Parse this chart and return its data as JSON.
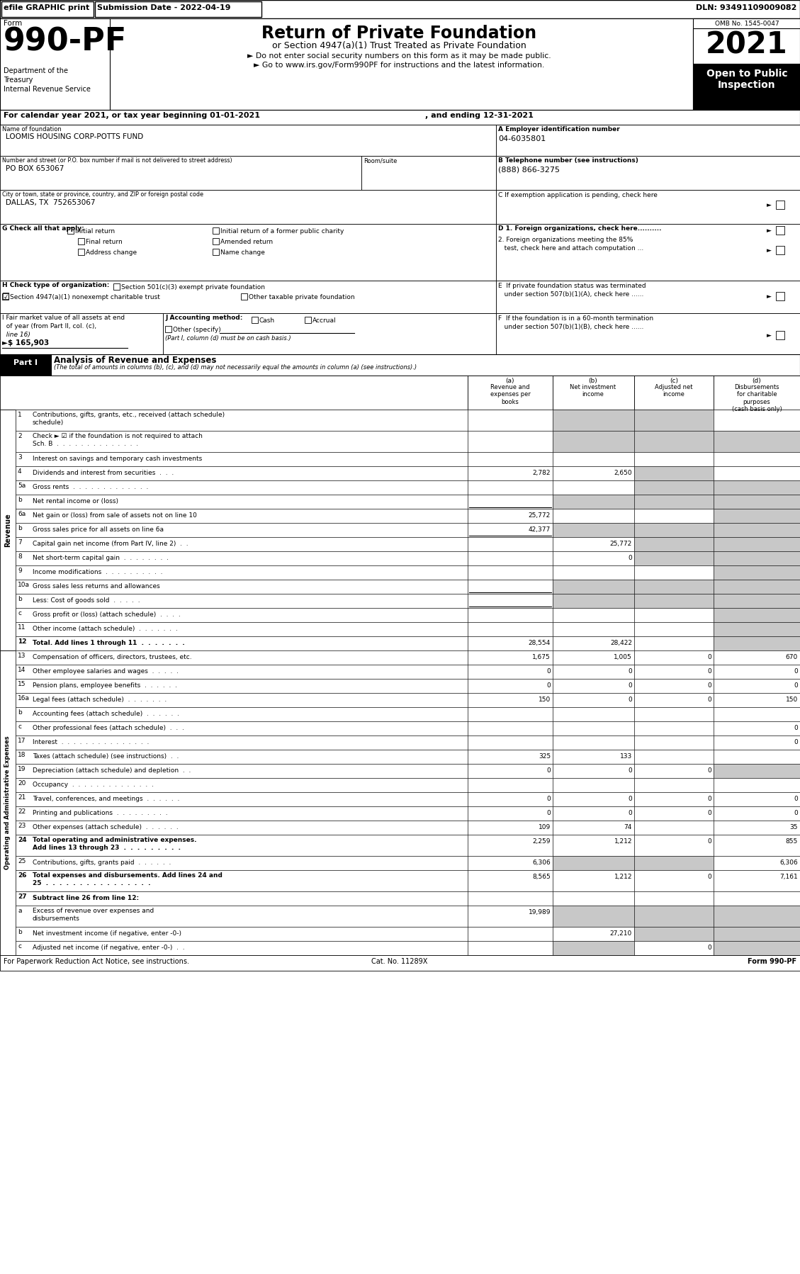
{
  "header_bar_text": "efile GRAPHIC print",
  "submission_date": "Submission Date - 2022-04-19",
  "dln": "DLN: 93491109009082",
  "form_number": "990-PF",
  "form_label": "Form",
  "dept_text": "Department of the\nTreasury\nInternal Revenue Service",
  "main_title": "Return of Private Foundation",
  "subtitle": "or Section 4947(a)(1) Trust Treated as Private Foundation",
  "bullet1": "► Do not enter social security numbers on this form as it may be made public.",
  "bullet2": "► Go to www.irs.gov/Form990PF for instructions and the latest information.",
  "year": "2021",
  "open_public": "Open to Public\nInspection",
  "omb": "OMB No. 1545-0047",
  "calendar_line1": "For calendar year 2021, or tax year beginning 01-01-2021",
  "calendar_line2": ", and ending 12-31-2021",
  "name_label": "Name of foundation",
  "name_value": "LOOMIS HOUSING CORP-POTTS FUND",
  "ein_label": "A Employer identification number",
  "ein_value": "04-6035801",
  "address_label": "Number and street (or P.O. box number if mail is not delivered to street address)",
  "address_value": "PO BOX 653067",
  "room_label": "Room/suite",
  "phone_label": "B Telephone number (see instructions)",
  "phone_value": "(888) 866-3275",
  "city_label": "City or town, state or province, country, and ZIP or foreign postal code",
  "city_value": "DALLAS, TX  752653067",
  "c_label": "C If exemption application is pending, check here",
  "g_label": "G Check all that apply:",
  "g_opt1": "Initial return",
  "g_opt2": "Initial return of a former public charity",
  "g_opt3": "Final return",
  "g_opt4": "Amended return",
  "g_opt5": "Address change",
  "g_opt6": "Name change",
  "d1_label": "D 1. Foreign organizations, check here..........",
  "d2_label": "2. Foreign organizations meeting the 85%\n   test, check here and attach computation ...",
  "e_label": "E  If private foundation status was terminated\n   under section 507(b)(1)(A), check here ......",
  "h_label": "H Check type of organization:",
  "h_opt1": "Section 501(c)(3) exempt private foundation",
  "h_opt2": "Section 4947(a)(1) nonexempt charitable trust",
  "h_opt3": "Other taxable private foundation",
  "i_label_line1": "I Fair market value of all assets at end",
  "i_label_line2": "  of year (from Part II, col. (c),",
  "i_label_line3": "  line 16)",
  "i_arrow": "►$",
  "i_value": "165,903",
  "j_label": "J Accounting method:",
  "j_cash": "Cash",
  "j_accrual": "Accrual",
  "j_other": "Other (specify)",
  "j_note": "(Part I, column (d) must be on cash basis.)",
  "f_label": "F  If the foundation is in a 60-month termination\n   under section 507(b)(1)(B), check here ......",
  "part1_label": "Part I",
  "part1_title": "Analysis of Revenue and Expenses",
  "part1_italic": "(The total of amounts in columns (b), (c), and (d) may not necessarily equal the amounts in column (a) (see instructions).)",
  "col_a_label": "(a)",
  "col_a_text": "Revenue and\nexpenses per\nbooks",
  "col_b_label": "(b)",
  "col_b_text": "Net investment\nincome",
  "col_c_label": "(c)",
  "col_c_text": "Adjusted net\nincome",
  "col_d_label": "(d)",
  "col_d_text": "Disbursements\nfor charitable\npurposes\n(cash basis only)",
  "side_revenue": "Revenue",
  "side_expenses": "Operating and Administrative Expenses",
  "rows": [
    {
      "num": "1",
      "label": "Contributions, gifts, grants, etc., received (attach schedule)",
      "multiline": true,
      "label2": "schedule)",
      "a": "",
      "b": "",
      "c": "",
      "d": "",
      "sa": false,
      "sb": true,
      "sc": true,
      "sd": false,
      "bold": false
    },
    {
      "num": "2",
      "label": "Check ► ☑ if the foundation is not required to attach",
      "multiline": true,
      "label2": "Sch. B  .  .  .  .  .  .  .  .  .  .  .  .  .  .",
      "a": "",
      "b": "",
      "c": "",
      "d": "",
      "sa": false,
      "sb": true,
      "sc": true,
      "sd": true,
      "bold": false
    },
    {
      "num": "3",
      "label": "Interest on savings and temporary cash investments",
      "multiline": false,
      "a": "",
      "b": "",
      "c": "",
      "d": "",
      "sa": false,
      "sb": false,
      "sc": false,
      "sd": false,
      "bold": false
    },
    {
      "num": "4",
      "label": "Dividends and interest from securities  .  .  .",
      "multiline": false,
      "a": "2,782",
      "b": "2,650",
      "c": "",
      "d": "",
      "sa": false,
      "sb": false,
      "sc": true,
      "sd": false,
      "bold": false
    },
    {
      "num": "5a",
      "label": "Gross rents  .  .  .  .  .  .  .  .  .  .  .  .  .",
      "multiline": false,
      "a": "",
      "b": "",
      "c": "",
      "d": "",
      "sa": false,
      "sb": false,
      "sc": true,
      "sd": true,
      "bold": false
    },
    {
      "num": "b",
      "label": "Net rental income or (loss)",
      "multiline": false,
      "a": "",
      "b": "",
      "c": "",
      "d": "",
      "sa": false,
      "sb": true,
      "sc": true,
      "sd": true,
      "bold": false,
      "underline_a": true
    },
    {
      "num": "6a",
      "label": "Net gain or (loss) from sale of assets not on line 10",
      "multiline": false,
      "a": "25,772",
      "b": "",
      "c": "",
      "d": "",
      "sa": false,
      "sb": false,
      "sc": false,
      "sd": true,
      "bold": false
    },
    {
      "num": "b",
      "label": "Gross sales price for all assets on line 6a",
      "multiline": false,
      "a": "42,377",
      "b": "",
      "c": "",
      "d": "",
      "sa": false,
      "sb": true,
      "sc": true,
      "sd": true,
      "bold": false,
      "underline_a": true
    },
    {
      "num": "7",
      "label": "Capital gain net income (from Part IV, line 2)  .  .",
      "multiline": false,
      "a": "",
      "b": "25,772",
      "c": "",
      "d": "",
      "sa": false,
      "sb": false,
      "sc": true,
      "sd": true,
      "bold": false
    },
    {
      "num": "8",
      "label": "Net short-term capital gain  .  .  .  .  .  .  .  .",
      "multiline": false,
      "a": "",
      "b": "0",
      "c": "",
      "d": "",
      "sa": false,
      "sb": false,
      "sc": true,
      "sd": true,
      "bold": false
    },
    {
      "num": "9",
      "label": "Income modifications  .  .  .  .  .  .  .  .  .  .",
      "multiline": false,
      "a": "",
      "b": "",
      "c": "",
      "d": "",
      "sa": false,
      "sb": false,
      "sc": false,
      "sd": true,
      "bold": false
    },
    {
      "num": "10a",
      "label": "Gross sales less returns and allowances",
      "multiline": false,
      "a": "",
      "b": "",
      "c": "",
      "d": "",
      "sa": false,
      "sb": true,
      "sc": true,
      "sd": true,
      "bold": false,
      "underline_a": true
    },
    {
      "num": "b",
      "label": "Less: Cost of goods sold  .  .  .  .  .",
      "multiline": false,
      "a": "",
      "b": "",
      "c": "",
      "d": "",
      "sa": false,
      "sb": true,
      "sc": true,
      "sd": true,
      "bold": false,
      "underline_a": true
    },
    {
      "num": "c",
      "label": "Gross profit or (loss) (attach schedule)  .  .  .  .",
      "multiline": false,
      "a": "",
      "b": "",
      "c": "",
      "d": "",
      "sa": false,
      "sb": false,
      "sc": false,
      "sd": true,
      "bold": false
    },
    {
      "num": "11",
      "label": "Other income (attach schedule)  .  .  .  .  .  .  .",
      "multiline": false,
      "a": "",
      "b": "",
      "c": "",
      "d": "",
      "sa": false,
      "sb": false,
      "sc": false,
      "sd": true,
      "bold": false
    },
    {
      "num": "12",
      "label": "Total. Add lines 1 through 11  .  .  .  .  .  .  .",
      "multiline": false,
      "a": "28,554",
      "b": "28,422",
      "c": "",
      "d": "",
      "sa": false,
      "sb": false,
      "sc": false,
      "sd": true,
      "bold": true
    },
    {
      "num": "13",
      "label": "Compensation of officers, directors, trustees, etc.",
      "multiline": false,
      "a": "1,675",
      "b": "1,005",
      "c": "0",
      "d": "670",
      "sa": false,
      "sb": false,
      "sc": false,
      "sd": false,
      "bold": false
    },
    {
      "num": "14",
      "label": "Other employee salaries and wages  .  .  .  .  .",
      "multiline": false,
      "a": "0",
      "b": "0",
      "c": "0",
      "d": "0",
      "sa": false,
      "sb": false,
      "sc": false,
      "sd": false,
      "bold": false
    },
    {
      "num": "15",
      "label": "Pension plans, employee benefits  .  .  .  .  .  .",
      "multiline": false,
      "a": "0",
      "b": "0",
      "c": "0",
      "d": "0",
      "sa": false,
      "sb": false,
      "sc": false,
      "sd": false,
      "bold": false
    },
    {
      "num": "16a",
      "label": "Legal fees (attach schedule)  .  .  .  .  .  .  .",
      "multiline": false,
      "a": "150",
      "b": "0",
      "c": "0",
      "d": "150",
      "sa": false,
      "sb": false,
      "sc": false,
      "sd": false,
      "bold": false
    },
    {
      "num": "b",
      "label": "Accounting fees (attach schedule)  .  .  .  .  .  .",
      "multiline": false,
      "a": "",
      "b": "",
      "c": "",
      "d": "",
      "sa": false,
      "sb": false,
      "sc": false,
      "sd": false,
      "bold": false
    },
    {
      "num": "c",
      "label": "Other professional fees (attach schedule)  .  .  .",
      "multiline": false,
      "a": "",
      "b": "",
      "c": "",
      "d": "0",
      "sa": false,
      "sb": false,
      "sc": false,
      "sd": false,
      "bold": false
    },
    {
      "num": "17",
      "label": "Interest  .  .  .  .  .  .  .  .  .  .  .  .  .  .  .",
      "multiline": false,
      "a": "",
      "b": "",
      "c": "",
      "d": "0",
      "sa": false,
      "sb": false,
      "sc": false,
      "sd": false,
      "bold": false
    },
    {
      "num": "18",
      "label": "Taxes (attach schedule) (see instructions)  .  .",
      "multiline": false,
      "a": "325",
      "b": "133",
      "c": "",
      "d": "",
      "sa": false,
      "sb": false,
      "sc": false,
      "sd": false,
      "bold": false
    },
    {
      "num": "19",
      "label": "Depreciation (attach schedule) and depletion  .  .",
      "multiline": false,
      "a": "0",
      "b": "0",
      "c": "0",
      "d": "",
      "sa": false,
      "sb": false,
      "sc": false,
      "sd": true,
      "bold": false
    },
    {
      "num": "20",
      "label": "Occupancy  .  .  .  .  .  .  .  .  .  .  .  .  .  .",
      "multiline": false,
      "a": "",
      "b": "",
      "c": "",
      "d": "",
      "sa": false,
      "sb": false,
      "sc": false,
      "sd": false,
      "bold": false
    },
    {
      "num": "21",
      "label": "Travel, conferences, and meetings  .  .  .  .  .  .",
      "multiline": false,
      "a": "0",
      "b": "0",
      "c": "0",
      "d": "0",
      "sa": false,
      "sb": false,
      "sc": false,
      "sd": false,
      "bold": false
    },
    {
      "num": "22",
      "label": "Printing and publications  .  .  .  .  .  .  .  .  .",
      "multiline": false,
      "a": "0",
      "b": "0",
      "c": "0",
      "d": "0",
      "sa": false,
      "sb": false,
      "sc": false,
      "sd": false,
      "bold": false
    },
    {
      "num": "23",
      "label": "Other expenses (attach schedule)  .  .  .  .  .  .",
      "multiline": false,
      "a": "109",
      "b": "74",
      "c": "",
      "d": "35",
      "sa": false,
      "sb": false,
      "sc": false,
      "sd": false,
      "bold": false
    },
    {
      "num": "24",
      "label": "Total operating and administrative expenses.",
      "multiline": true,
      "label2": "Add lines 13 through 23  .  .  .  .  .  .  .  .  .",
      "a": "2,259",
      "b": "1,212",
      "c": "0",
      "d": "855",
      "sa": false,
      "sb": false,
      "sc": false,
      "sd": false,
      "bold": true
    },
    {
      "num": "25",
      "label": "Contributions, gifts, grants paid  .  .  .  .  .  .",
      "multiline": false,
      "a": "6,306",
      "b": "",
      "c": "",
      "d": "6,306",
      "sa": false,
      "sb": true,
      "sc": true,
      "sd": false,
      "bold": false
    },
    {
      "num": "26",
      "label": "Total expenses and disbursements. Add lines 24 and",
      "multiline": true,
      "label2": "25  .  .  .  .  .  .  .  .  .  .  .  .  .  .  .  .",
      "a": "8,565",
      "b": "1,212",
      "c": "0",
      "d": "7,161",
      "sa": false,
      "sb": false,
      "sc": false,
      "sd": false,
      "bold": true
    },
    {
      "num": "27",
      "label": "Subtract line 26 from line 12:",
      "multiline": false,
      "a": "",
      "b": "",
      "c": "",
      "d": "",
      "sa": false,
      "sb": false,
      "sc": false,
      "sd": false,
      "bold": true
    },
    {
      "num": "a",
      "label": "Excess of revenue over expenses and",
      "multiline": true,
      "label2": "disbursements",
      "a": "19,989",
      "b": "",
      "c": "",
      "d": "",
      "sa": false,
      "sb": true,
      "sc": true,
      "sd": true,
      "bold": false
    },
    {
      "num": "b",
      "label": "Net investment income (if negative, enter -0-)",
      "multiline": false,
      "a": "",
      "b": "27,210",
      "c": "",
      "d": "",
      "sa": false,
      "sb": false,
      "sc": true,
      "sd": true,
      "bold": false
    },
    {
      "num": "c",
      "label": "Adjusted net income (if negative, enter -0-)  .  .",
      "multiline": false,
      "a": "",
      "b": "",
      "c": "0",
      "d": "",
      "sa": false,
      "sb": true,
      "sc": false,
      "sd": true,
      "bold": false
    }
  ],
  "footer_left": "For Paperwork Reduction Act Notice, see instructions.",
  "footer_cat": "Cat. No. 11289X",
  "footer_right": "Form 990-PF",
  "gray_shade": "#c8c8c8",
  "black": "#000000",
  "white": "#ffffff"
}
